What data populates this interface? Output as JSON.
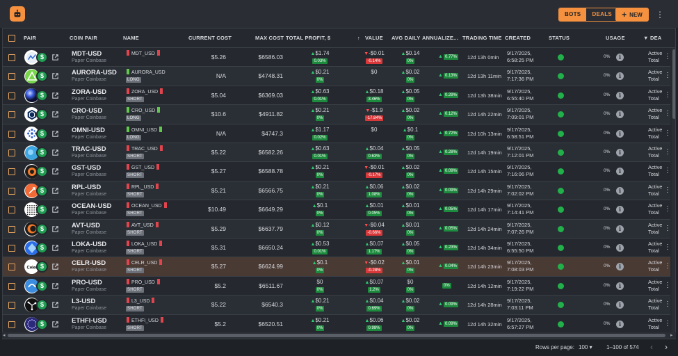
{
  "header": {
    "tabs": [
      {
        "label": "BOTS",
        "active": true
      },
      {
        "label": "DEALS",
        "active": false
      }
    ],
    "new_label": "NEW",
    "accent": "#f5913f"
  },
  "table": {
    "columns": {
      "pair": "PAIR",
      "coin_pair": "COIN PAIR",
      "name": "NAME",
      "current_cost": "CURRENT COST",
      "max_cost": "MAX COST",
      "total_profit": "TOTAL PROFIT, $",
      "value": "VALUE",
      "avg_daily": "AVG DAILY",
      "annualized": "ANNUALIZE...",
      "trading_time": "TRADING TIME",
      "created": "CREATED",
      "status": "STATUS",
      "usage": "USAGE",
      "deal": "DEA"
    },
    "rows": [
      {
        "pair": "MDT-USD",
        "exchange": "Paper Coinbase",
        "name": "MDT_USD",
        "side": "",
        "current": "$5.26",
        "max": "$6586.03",
        "profit": "$1.74",
        "profit_pct": "0.03%",
        "profit_dir": "up",
        "value": "-$0.01",
        "value_pct": "-0.14%",
        "value_dir": "down",
        "avg": "$0.14",
        "avg_pct": "0%",
        "avg_dir": "up",
        "ann": "0.77%",
        "time": "12d 13h 0min",
        "created1": "9/17/2025,",
        "created2": "6:58:25 PM",
        "usage": "0%",
        "d1": "Active",
        "d2": "Total",
        "logo": "mdt",
        "name_color": "#e0444c",
        "hl": false
      },
      {
        "pair": "AURORA-USD",
        "exchange": "Paper Coinbase",
        "name": "AURORA_USD",
        "side": "LONG",
        "current": "N/A",
        "max": "$4748.31",
        "profit": "$0.21",
        "profit_pct": "0%",
        "profit_dir": "up",
        "value": "$0",
        "value_pct": "",
        "value_dir": "",
        "avg": "$0.02",
        "avg_pct": "0%",
        "avg_dir": "up",
        "ann": "0.13%",
        "time": "12d 13h 11min",
        "created1": "9/17/2025,",
        "created2": "7:17:36 PM",
        "usage": "0%",
        "d1": "Active",
        "d2": "Total",
        "logo": "aurora",
        "name_color": "#63c74d",
        "hl": false
      },
      {
        "pair": "ZORA-USD",
        "exchange": "Paper Coinbase",
        "name": "ZORA_USD",
        "side": "SHORT",
        "current": "$5.04",
        "max": "$6369.03",
        "profit": "$0.63",
        "profit_pct": "0.01%",
        "profit_dir": "up",
        "value": "$0.18",
        "value_pct": "3.46%",
        "value_dir": "up",
        "avg": "$0.05",
        "avg_pct": "0%",
        "avg_dir": "up",
        "ann": "0.29%",
        "time": "12d 13h 38min",
        "created1": "9/17/2025,",
        "created2": "6:55:40 PM",
        "usage": "0%",
        "d1": "Active",
        "d2": "Total",
        "logo": "zora",
        "name_color": "#e0444c",
        "hl": false
      },
      {
        "pair": "CRO-USD",
        "exchange": "Paper Coinbase",
        "name": "CRO_USD",
        "side": "LONG",
        "current": "$10.6",
        "max": "$4911.82",
        "profit": "$0.21",
        "profit_pct": "0%",
        "profit_dir": "up",
        "value": "-$1.9",
        "value_pct": "-17.84%",
        "value_dir": "down",
        "avg": "$0.02",
        "avg_pct": "0%",
        "avg_dir": "up",
        "ann": "0.12%",
        "time": "12d 14h 22min",
        "created1": "9/17/2025,",
        "created2": "7:09:01 PM",
        "usage": "0%",
        "d1": "Active",
        "d2": "Total",
        "logo": "cro",
        "name_color": "#63c74d",
        "hl": false
      },
      {
        "pair": "OMNI-USD",
        "exchange": "Paper Coinbase",
        "name": "OMNI_USD",
        "side": "LONG",
        "current": "N/A",
        "max": "$4747.3",
        "profit": "$1.17",
        "profit_pct": "0.02%",
        "profit_dir": "up",
        "value": "$0",
        "value_pct": "",
        "value_dir": "",
        "avg": "$0.1",
        "avg_pct": "0%",
        "avg_dir": "up",
        "ann": "0.72%",
        "time": "12d 10h 13min",
        "created1": "9/17/2025,",
        "created2": "6:58:51 PM",
        "usage": "0%",
        "d1": "Active",
        "d2": "Total",
        "logo": "omni",
        "name_color": "#63c74d",
        "hl": false
      },
      {
        "pair": "TRAC-USD",
        "exchange": "Paper Coinbase",
        "name": "TRAC_USD",
        "side": "SHORT",
        "current": "$5.22",
        "max": "$6582.26",
        "profit": "$0.63",
        "profit_pct": "0.01%",
        "profit_dir": "up",
        "value": "$0.04",
        "value_pct": "0.63%",
        "value_dir": "up",
        "avg": "$0.05",
        "avg_pct": "0%",
        "avg_dir": "up",
        "ann": "0.28%",
        "time": "12d 14h 19min",
        "created1": "9/17/2025,",
        "created2": "7:12:01 PM",
        "usage": "0%",
        "d1": "Active",
        "d2": "Total",
        "logo": "trac",
        "name_color": "#e0444c",
        "hl": false
      },
      {
        "pair": "GST-USD",
        "exchange": "Paper Coinbase",
        "name": "GST_USD",
        "side": "SHORT",
        "current": "$5.27",
        "max": "$6588.78",
        "profit": "$0.21",
        "profit_pct": "0%",
        "profit_dir": "up",
        "value": "-$0.01",
        "value_pct": "-0.17%",
        "value_dir": "down",
        "avg": "$0.02",
        "avg_pct": "0%",
        "avg_dir": "up",
        "ann": "0.09%",
        "time": "12d 14h 15min",
        "created1": "9/17/2025,",
        "created2": "7:16:06 PM",
        "usage": "0%",
        "d1": "Active",
        "d2": "Total",
        "logo": "gst",
        "name_color": "#e0444c",
        "hl": false
      },
      {
        "pair": "RPL-USD",
        "exchange": "Paper Coinbase",
        "name": "RPL_USD",
        "side": "SHORT",
        "current": "$5.21",
        "max": "$6566.75",
        "profit": "$0.21",
        "profit_pct": "0%",
        "profit_dir": "up",
        "value": "$0.06",
        "value_pct": "1.08%",
        "value_dir": "up",
        "avg": "$0.02",
        "avg_pct": "0%",
        "avg_dir": "up",
        "ann": "0.09%",
        "time": "12d 14h 29min",
        "created1": "9/17/2025,",
        "created2": "7:02:02 PM",
        "usage": "0%",
        "d1": "Active",
        "d2": "Total",
        "logo": "rpl",
        "name_color": "#e0444c",
        "hl": false
      },
      {
        "pair": "OCEAN-USD",
        "exchange": "Paper Coinbase",
        "name": "OCEAN_USD",
        "side": "SHORT",
        "current": "$10.49",
        "max": "$6649.29",
        "profit": "$0.1",
        "profit_pct": "0%",
        "profit_dir": "up",
        "value": "$0.01",
        "value_pct": "0.05%",
        "value_dir": "up",
        "avg": "$0.01",
        "avg_pct": "0%",
        "avg_dir": "up",
        "ann": "0.05%",
        "time": "12d 14h 17min",
        "created1": "9/17/2025,",
        "created2": "7:14:41 PM",
        "usage": "0%",
        "d1": "Active",
        "d2": "Total",
        "logo": "ocean",
        "name_color": "#e0444c",
        "hl": false
      },
      {
        "pair": "AVT-USD",
        "exchange": "Paper Coinbase",
        "name": "AVT_USD",
        "side": "SHORT",
        "current": "$5.29",
        "max": "$6637.79",
        "profit": "$0.12",
        "profit_pct": "0%",
        "profit_dir": "up",
        "value": "-$0.04",
        "value_pct": "-0.66%",
        "value_dir": "down",
        "avg": "$0.01",
        "avg_pct": "0%",
        "avg_dir": "up",
        "ann": "0.05%",
        "time": "12d 14h 24min",
        "created1": "9/17/2025,",
        "created2": "7:07:26 PM",
        "usage": "0%",
        "d1": "Active",
        "d2": "Total",
        "logo": "avt",
        "name_color": "#e0444c",
        "hl": false
      },
      {
        "pair": "LOKA-USD",
        "exchange": "Paper Coinbase",
        "name": "LOKA_USD",
        "side": "SHORT",
        "current": "$5.31",
        "max": "$6650.24",
        "profit": "$0.53",
        "profit_pct": "0.01%",
        "profit_dir": "up",
        "value": "$0.07",
        "value_pct": "1.17%",
        "value_dir": "up",
        "avg": "$0.05",
        "avg_pct": "0%",
        "avg_dir": "up",
        "ann": "0.23%",
        "time": "12d 14h 34min",
        "created1": "9/17/2025,",
        "created2": "6:55:50 PM",
        "usage": "0%",
        "d1": "Active",
        "d2": "Total",
        "logo": "loka",
        "name_color": "#e0444c",
        "hl": false
      },
      {
        "pair": "CELR-USD",
        "exchange": "Paper Coinbase",
        "name": "CELR_USD",
        "side": "SHORT",
        "current": "$5.27",
        "max": "$6624.99",
        "profit": "$0.1",
        "profit_pct": "0%",
        "profit_dir": "up",
        "value": "-$0.02",
        "value_pct": "-0.28%",
        "value_dir": "down",
        "avg": "$0.01",
        "avg_pct": "0%",
        "avg_dir": "up",
        "ann": "0.04%",
        "time": "12d 14h 23min",
        "created1": "9/17/2025,",
        "created2": "7:08:03 PM",
        "usage": "0%",
        "d1": "Active",
        "d2": "Total",
        "logo": "celr",
        "name_color": "#e0444c",
        "hl": true
      },
      {
        "pair": "PRO-USD",
        "exchange": "Paper Coinbase",
        "name": "PRO_USD",
        "side": "SHORT",
        "current": "$5.2",
        "max": "$6511.67",
        "profit": "$0",
        "profit_pct": "0%",
        "profit_dir": "",
        "value": "$0.07",
        "value_pct": "1.2%",
        "value_dir": "up",
        "avg": "$0",
        "avg_pct": "0%",
        "avg_dir": "",
        "ann": "0%",
        "time": "12d 14h 12min",
        "created1": "9/17/2025,",
        "created2": "7:19:22 PM",
        "usage": "0%",
        "d1": "Active",
        "d2": "Total",
        "logo": "pro",
        "name_color": "#e0444c",
        "hl": false
      },
      {
        "pair": "L3-USD",
        "exchange": "Paper Coinbase",
        "name": "L3_USD",
        "side": "SHORT",
        "current": "$5.22",
        "max": "$6540.3",
        "profit": "$0.21",
        "profit_pct": "0%",
        "profit_dir": "up",
        "value": "$0.04",
        "value_pct": "0.69%",
        "value_dir": "up",
        "avg": "$0.02",
        "avg_pct": "0%",
        "avg_dir": "up",
        "ann": "0.09%",
        "time": "12d 14h 28min",
        "created1": "9/17/2025,",
        "created2": "7:03:11 PM",
        "usage": "0%",
        "d1": "Active",
        "d2": "Total",
        "logo": "l3",
        "name_color": "#e0444c",
        "hl": false
      },
      {
        "pair": "ETHFI-USD",
        "exchange": "Paper Coinbase",
        "name": "ETHFI_USD",
        "side": "SHORT",
        "current": "$5.2",
        "max": "$6520.51",
        "profit": "$0.21",
        "profit_pct": "0%",
        "profit_dir": "up",
        "value": "$0.06",
        "value_pct": "0.98%",
        "value_dir": "up",
        "avg": "$0.02",
        "avg_pct": "0%",
        "avg_dir": "up",
        "ann": "0.09%",
        "time": "12d 14h 32min",
        "created1": "9/17/2025,",
        "created2": "6:57:27 PM",
        "usage": "0%",
        "d1": "Active",
        "d2": "Total",
        "logo": "ethfi",
        "name_color": "#e0444c",
        "hl": false
      }
    ]
  },
  "footer": {
    "rows_per_page_label": "Rows per page:",
    "rows_per_page": "100",
    "range": "1–100 of 574"
  },
  "icons": {
    "logo": "robot-icon",
    "menu": "kebab-icon",
    "external": "external-link-icon",
    "info": "info-icon",
    "sort": "arrow-up-icon",
    "filter": "filter-icon",
    "prev": "chevron-left-icon",
    "next": "chevron-right-icon"
  }
}
